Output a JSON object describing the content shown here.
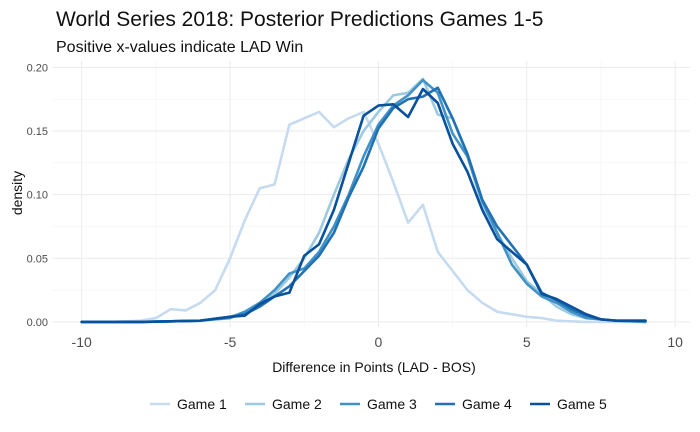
{
  "chart_data": {
    "type": "line",
    "title": "World Series 2018: Posterior Predictions Games 1-5",
    "subtitle": "Positive x-values indicate LAD Win",
    "xlabel": "Difference in Points (LAD - BOS)",
    "ylabel": "density",
    "xlim": [
      -11,
      10.5
    ],
    "ylim": [
      -0.004,
      0.205
    ],
    "x_ticks": [
      -10,
      -5,
      0,
      5,
      10
    ],
    "y_ticks": [
      0.0,
      0.05,
      0.1,
      0.15,
      0.2
    ],
    "x_tick_labels": [
      "-10",
      "-5",
      "0",
      "5",
      "10"
    ],
    "y_tick_labels": [
      "0.00",
      "0.05",
      "0.10",
      "0.15",
      "0.20"
    ],
    "grid": true,
    "legend_position": "bottom",
    "series": [
      {
        "name": "Game 1",
        "color": "#c6dbef",
        "x": [
          -10,
          -9,
          -8,
          -7.5,
          -7,
          -6.5,
          -6,
          -5.5,
          -5,
          -4.5,
          -4,
          -3.5,
          -3,
          -2.5,
          -2,
          -1.5,
          -1,
          -0.5,
          0,
          0.5,
          1,
          1.5,
          2,
          2.5,
          3,
          3.5,
          4,
          5,
          5.5,
          6,
          7,
          8,
          9
        ],
        "values": [
          0.0,
          0.0,
          0.001,
          0.003,
          0.01,
          0.009,
          0.015,
          0.025,
          0.05,
          0.08,
          0.105,
          0.108,
          0.155,
          0.16,
          0.165,
          0.153,
          0.16,
          0.165,
          0.14,
          0.11,
          0.078,
          0.092,
          0.055,
          0.04,
          0.025,
          0.015,
          0.008,
          0.004,
          0.003,
          0.001,
          0.0,
          0.0,
          0.0
        ]
      },
      {
        "name": "Game 2",
        "color": "#9ecae1",
        "x": [
          -10,
          -8,
          -6,
          -5,
          -4.5,
          -4,
          -3.5,
          -3,
          -2.5,
          -2,
          -1.5,
          -1,
          -0.5,
          0,
          0.5,
          1,
          1.5,
          2,
          2.5,
          3,
          3.5,
          4,
          4.5,
          5,
          5.5,
          6,
          6.5,
          7,
          8,
          9
        ],
        "values": [
          0.0,
          0.0,
          0.001,
          0.004,
          0.008,
          0.014,
          0.022,
          0.035,
          0.05,
          0.07,
          0.1,
          0.128,
          0.15,
          0.165,
          0.178,
          0.18,
          0.191,
          0.163,
          0.16,
          0.13,
          0.092,
          0.07,
          0.05,
          0.032,
          0.022,
          0.012,
          0.006,
          0.003,
          0.001,
          0.0
        ]
      },
      {
        "name": "Game 3",
        "color": "#4292c6",
        "x": [
          -10,
          -8,
          -6,
          -5,
          -4.5,
          -4,
          -3.5,
          -3,
          -2.5,
          -2,
          -1.5,
          -1,
          -0.5,
          0,
          0.5,
          1,
          1.5,
          2,
          2.5,
          3,
          3.5,
          4,
          4.5,
          5,
          5.5,
          6,
          6.5,
          7,
          8,
          9
        ],
        "values": [
          0.0,
          0.0,
          0.001,
          0.003,
          0.008,
          0.015,
          0.025,
          0.038,
          0.042,
          0.055,
          0.075,
          0.1,
          0.13,
          0.155,
          0.17,
          0.178,
          0.19,
          0.18,
          0.148,
          0.13,
          0.095,
          0.07,
          0.045,
          0.03,
          0.02,
          0.015,
          0.008,
          0.003,
          0.001,
          0.0
        ]
      },
      {
        "name": "Game 4",
        "color": "#2171b5",
        "x": [
          -10,
          -8,
          -6,
          -5,
          -4.5,
          -4,
          -3.5,
          -3,
          -2.5,
          -2,
          -1.5,
          -1,
          -0.5,
          0,
          0.5,
          1,
          1.5,
          2,
          2.5,
          3,
          3.5,
          4,
          4.5,
          5,
          5.5,
          6,
          6.5,
          7,
          7.5,
          8,
          9
        ],
        "values": [
          0.0,
          0.0,
          0.001,
          0.004,
          0.006,
          0.012,
          0.02,
          0.028,
          0.04,
          0.052,
          0.07,
          0.098,
          0.122,
          0.152,
          0.168,
          0.175,
          0.177,
          0.184,
          0.16,
          0.132,
          0.096,
          0.075,
          0.06,
          0.045,
          0.023,
          0.017,
          0.01,
          0.005,
          0.002,
          0.001,
          0.001
        ]
      },
      {
        "name": "Game 5",
        "color": "#08519c",
        "x": [
          -10,
          -8,
          -6,
          -5,
          -4.5,
          -4,
          -3.5,
          -3,
          -2.5,
          -2,
          -1.5,
          -1,
          -0.5,
          0,
          0.5,
          1,
          1.5,
          2,
          2.5,
          3,
          3.5,
          4,
          4.5,
          5,
          5.5,
          6,
          6.5,
          7,
          7.5,
          8,
          9
        ],
        "values": [
          0.0,
          0.0,
          0.001,
          0.004,
          0.005,
          0.014,
          0.02,
          0.023,
          0.052,
          0.061,
          0.088,
          0.125,
          0.162,
          0.17,
          0.171,
          0.161,
          0.183,
          0.172,
          0.14,
          0.118,
          0.088,
          0.065,
          0.055,
          0.045,
          0.022,
          0.018,
          0.012,
          0.006,
          0.002,
          0.001,
          0.001
        ]
      }
    ]
  }
}
